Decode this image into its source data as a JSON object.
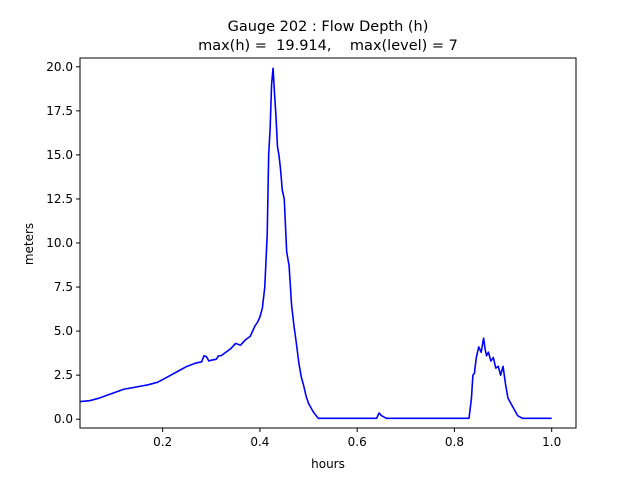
{
  "chart_data": {
    "type": "line",
    "title": "Gauge 202 : Flow Depth (h)",
    "subtitle": "max(h) =  19.914,    max(level) = 7",
    "xlabel": "hours",
    "ylabel": "meters",
    "xlim": [
      0.03,
      1.05
    ],
    "ylim": [
      -0.5,
      20.5
    ],
    "xticks": [
      0.2,
      0.4,
      0.6,
      0.8,
      1.0
    ],
    "xtick_labels": [
      "0.2",
      "0.4",
      "0.6",
      "0.8",
      "1.0"
    ],
    "yticks": [
      0,
      2.5,
      5,
      7.5,
      10,
      12.5,
      15,
      17.5,
      20
    ],
    "ytick_labels": [
      "0.0",
      "2.5",
      "5.0",
      "7.5",
      "10.0",
      "12.5",
      "15.0",
      "17.5",
      "20.0"
    ],
    "grid": false,
    "series": [
      {
        "color": "#0000ff",
        "x": [
          0.03,
          0.05,
          0.07,
          0.09,
          0.11,
          0.12,
          0.14,
          0.17,
          0.19,
          0.21,
          0.23,
          0.25,
          0.27,
          0.28,
          0.285,
          0.29,
          0.295,
          0.3,
          0.31,
          0.315,
          0.32,
          0.33,
          0.34,
          0.35,
          0.36,
          0.37,
          0.38,
          0.39,
          0.395,
          0.4,
          0.405,
          0.41,
          0.415,
          0.418,
          0.421,
          0.424,
          0.427,
          0.43,
          0.433,
          0.436,
          0.439,
          0.442,
          0.446,
          0.45,
          0.455,
          0.46,
          0.465,
          0.47,
          0.475,
          0.48,
          0.485,
          0.49,
          0.495,
          0.5,
          0.51,
          0.52,
          0.53,
          0.535,
          0.54,
          0.55,
          0.6,
          0.64,
          0.645,
          0.65,
          0.66,
          0.7,
          0.76,
          0.8,
          0.83,
          0.835,
          0.838,
          0.841,
          0.845,
          0.85,
          0.855,
          0.86,
          0.863,
          0.866,
          0.87,
          0.875,
          0.88,
          0.885,
          0.89,
          0.895,
          0.9,
          0.905,
          0.91,
          0.92,
          0.93,
          0.94,
          0.95,
          1.0
        ],
        "y": [
          1.0,
          1.05,
          1.2,
          1.4,
          1.6,
          1.7,
          1.8,
          1.95,
          2.1,
          2.4,
          2.7,
          3.0,
          3.2,
          3.25,
          3.6,
          3.55,
          3.3,
          3.35,
          3.4,
          3.6,
          3.6,
          3.8,
          4.0,
          4.3,
          4.2,
          4.5,
          4.7,
          5.3,
          5.5,
          5.8,
          6.3,
          7.5,
          10.5,
          15.0,
          16.5,
          19.0,
          19.914,
          18.5,
          17.2,
          15.5,
          15.0,
          14.3,
          13.0,
          12.5,
          9.5,
          8.7,
          6.5,
          5.3,
          4.3,
          3.2,
          2.4,
          1.9,
          1.3,
          0.9,
          0.4,
          0.05,
          0.05,
          0.05,
          0.05,
          0.05,
          0.05,
          0.05,
          0.35,
          0.2,
          0.05,
          0.05,
          0.05,
          0.05,
          0.05,
          1.2,
          2.5,
          2.6,
          3.5,
          4.1,
          3.8,
          4.6,
          4.0,
          3.6,
          3.8,
          3.3,
          3.5,
          2.9,
          3.0,
          2.5,
          3.0,
          2.0,
          1.2,
          0.7,
          0.2,
          0.05,
          0.05,
          0.05
        ]
      }
    ]
  }
}
